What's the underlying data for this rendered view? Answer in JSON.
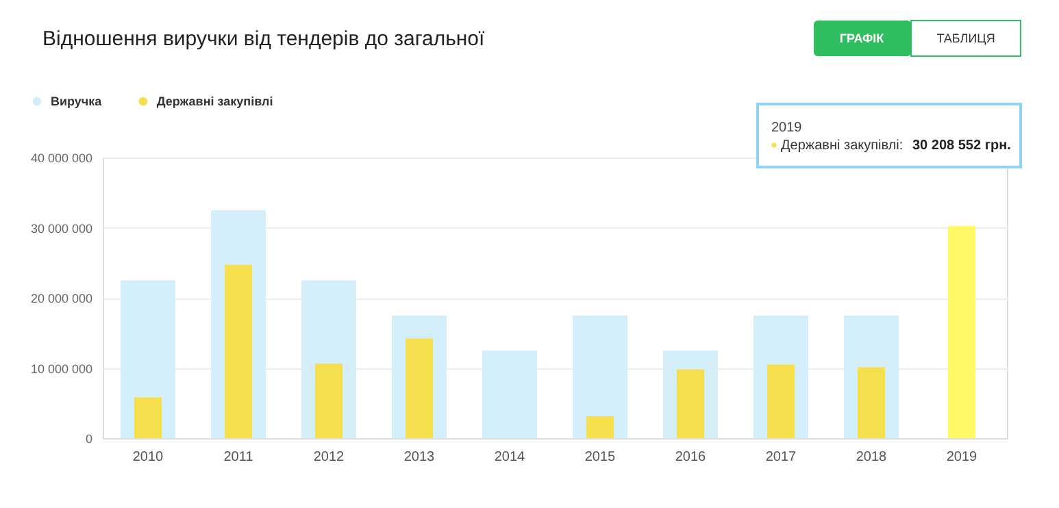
{
  "chart_data": {
    "type": "bar",
    "title": "Відношення виручки від тендерів до загальної",
    "categories": [
      "2010",
      "2011",
      "2012",
      "2013",
      "2014",
      "2015",
      "2016",
      "2017",
      "2018",
      "2019"
    ],
    "series": [
      {
        "name": "Виручка",
        "color": "#d4eefa",
        "values": [
          22500000,
          32500000,
          22500000,
          17500000,
          12500000,
          17500000,
          12500000,
          17500000,
          17500000,
          null
        ]
      },
      {
        "name": "Державні закупівлі",
        "color": "#f5df4d",
        "colors": [
          "#f5df4d",
          "#f5df4d",
          "#f5df4d",
          "#f5df4d",
          "#f5df4d",
          "#f5df4d",
          "#f5df4d",
          "#f5df4d",
          "#f5df4d",
          "#fff966"
        ],
        "values": [
          5800000,
          24700000,
          10600000,
          14200000,
          null,
          3100000,
          9800000,
          10500000,
          10100000,
          30208552
        ]
      }
    ],
    "ylim": [
      0,
      40000000
    ],
    "yticks": [
      0,
      10000000,
      20000000,
      30000000,
      40000000
    ],
    "grid": "y",
    "legend": "top left",
    "annotations": [
      "ГРАФІК",
      "ТАБЛИЦЯ",
      "2019",
      "Державні закупівлі: 30 208 552 грн."
    ]
  }
}
